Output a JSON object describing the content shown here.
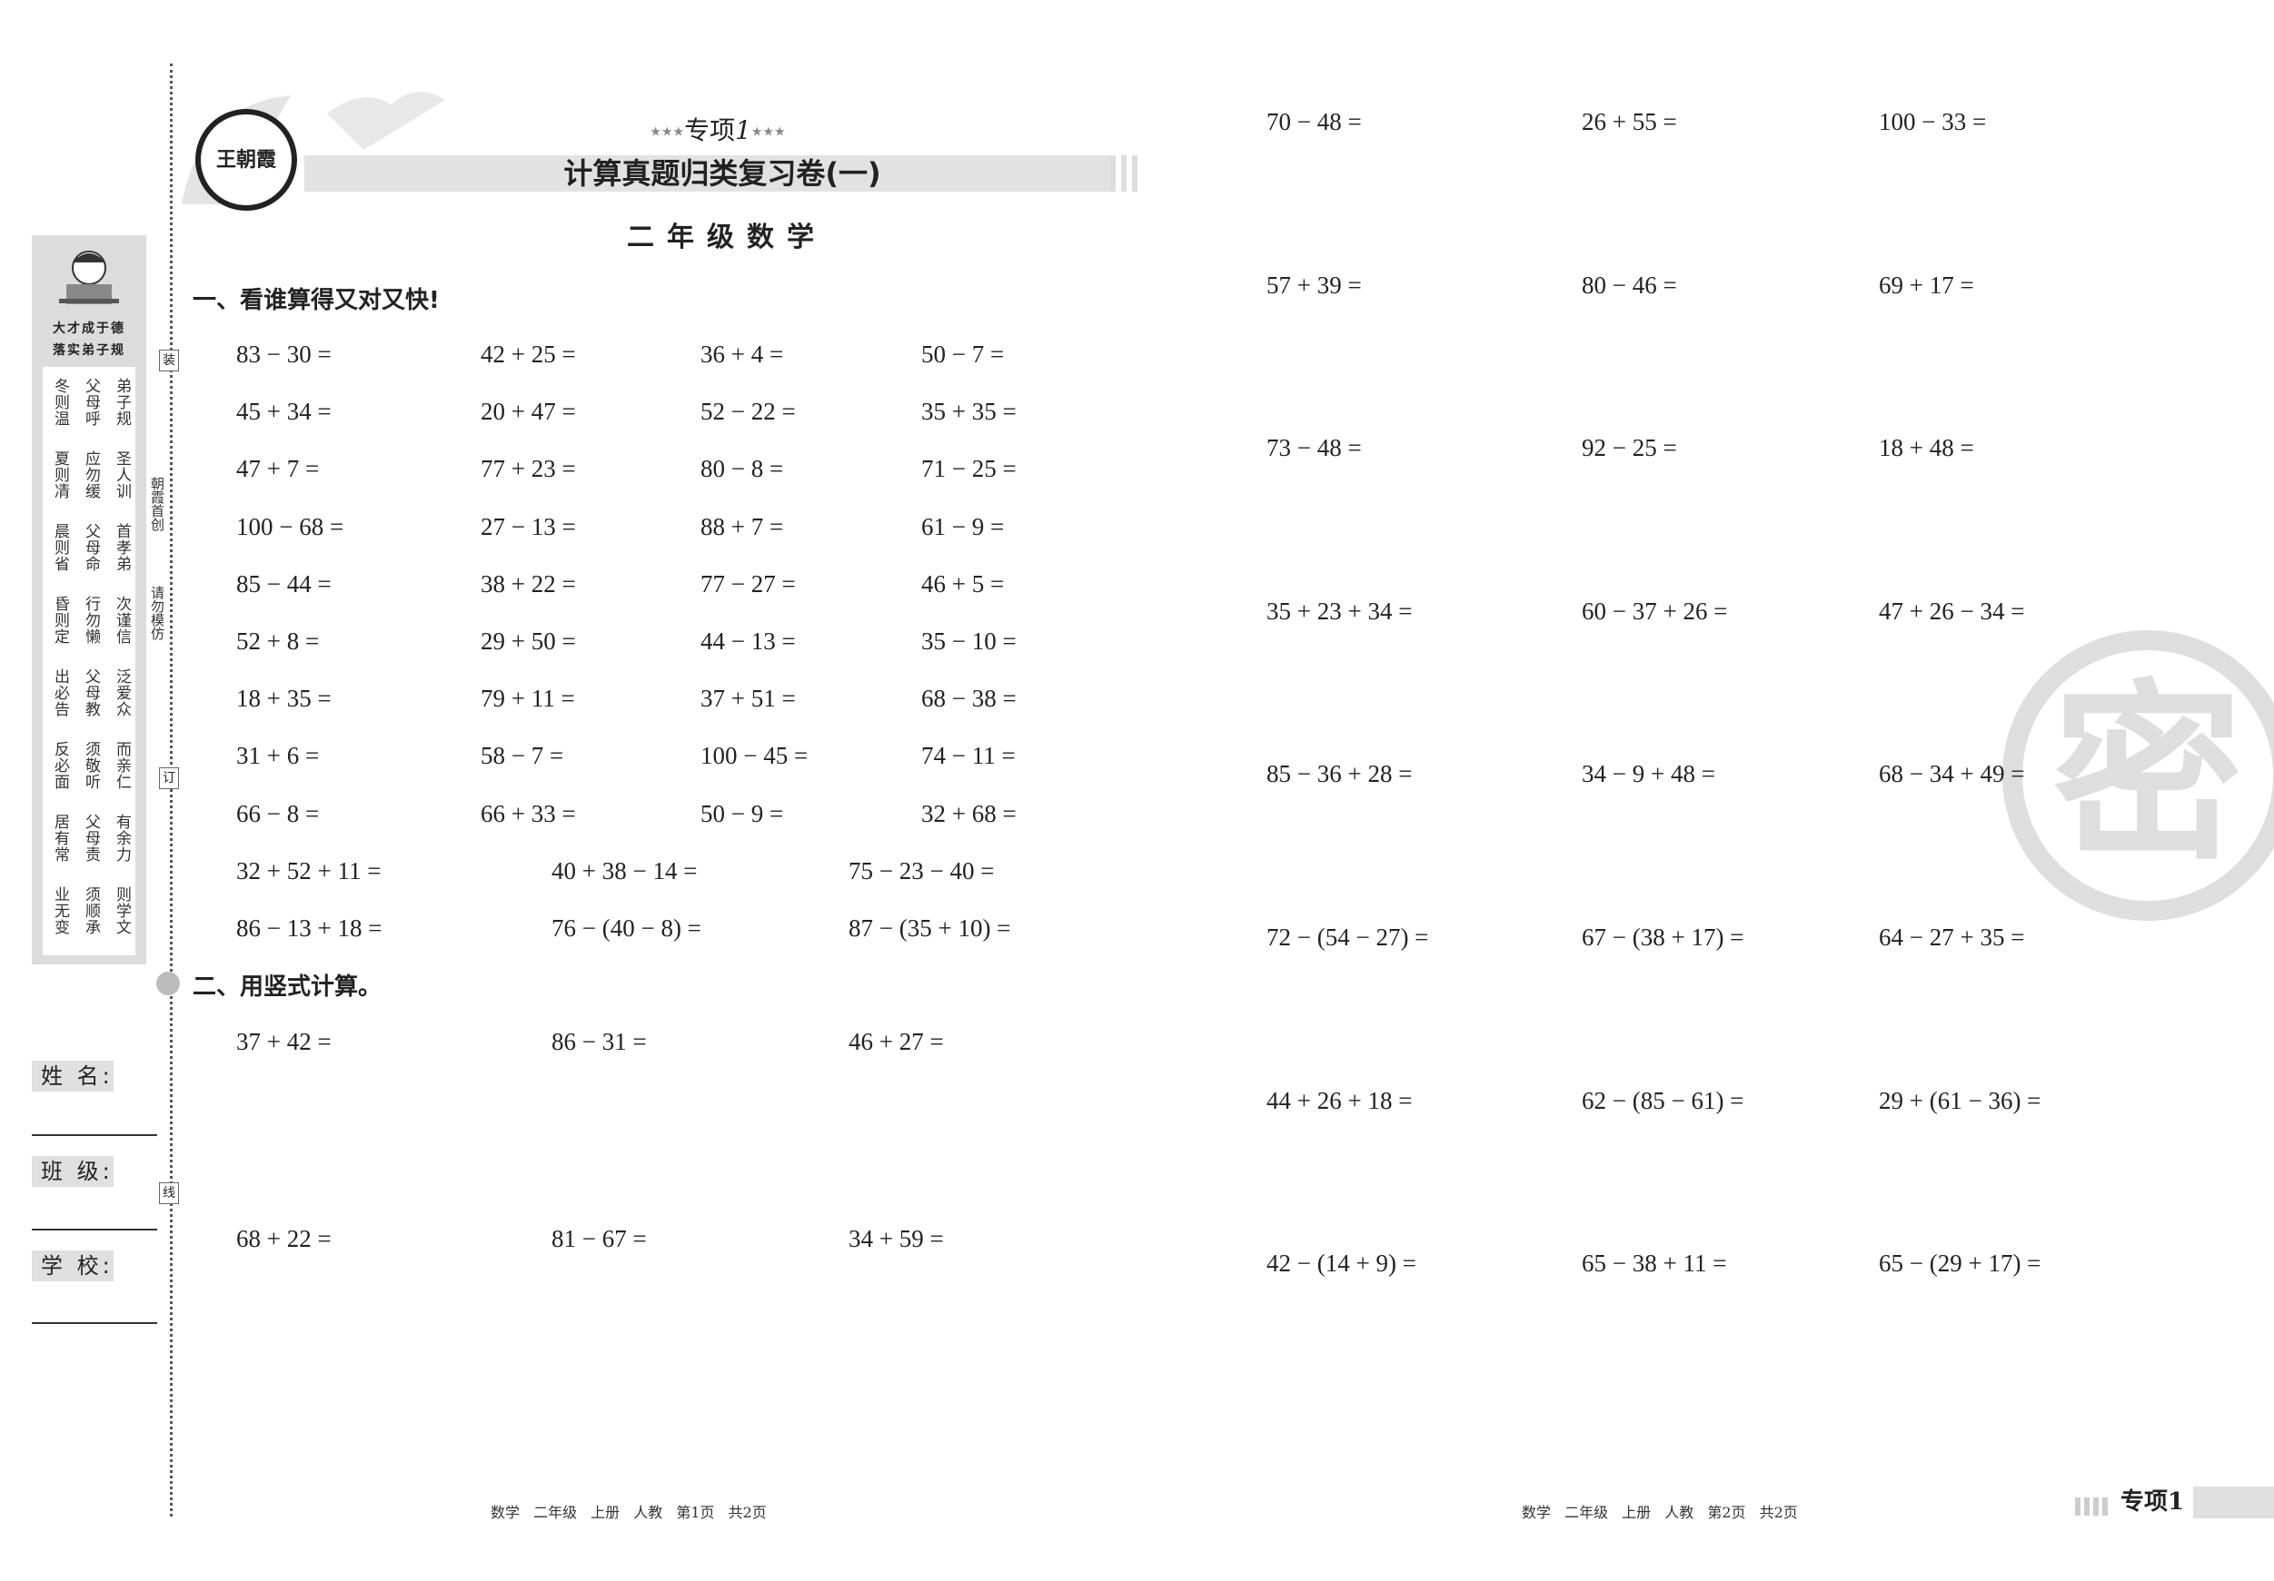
{
  "header": {
    "series_label": "专项",
    "series_number": "1",
    "title": "计算真题归类复习卷(一)",
    "subtitle": "二年级数学",
    "logo_text": "王朝霞"
  },
  "sidebar": {
    "motto_line1": "大才成于德",
    "motto_line2": "落实弟子规",
    "poem_groups": [
      [
        "冬则温",
        "父母呼",
        "弟子规"
      ],
      [
        "夏则凊",
        "应勿缓",
        "圣人训"
      ],
      [
        "晨则省",
        "父母命",
        "首孝弟"
      ],
      [
        "昏则定",
        "行勿懒",
        "次谨信"
      ],
      [
        "出必告",
        "父母教",
        "泛爱众"
      ],
      [
        "反必面",
        "须敬听",
        "而亲仁"
      ],
      [
        "居有常",
        "父母责",
        "有余力"
      ],
      [
        "业无变",
        "须顺承",
        "则学文"
      ]
    ],
    "fields": [
      {
        "label": "姓  名:"
      },
      {
        "label": "班  级:"
      },
      {
        "label": "学  校:"
      }
    ]
  },
  "spine": {
    "marks": [
      "装",
      "订",
      "线"
    ],
    "text_top": "朝霞首创",
    "text_bottom": "请勿模仿"
  },
  "section1": {
    "heading": "一、看谁算得又对又快!",
    "rows4": [
      [
        "83 − 30 =",
        "42 + 25 =",
        "36 + 4 =",
        "50 − 7 ="
      ],
      [
        "45 + 34 =",
        "20 + 47 =",
        "52 − 22 =",
        "35 + 35 ="
      ],
      [
        "47 + 7 =",
        "77 + 23 =",
        "80 − 8 =",
        "71 − 25 ="
      ],
      [
        "100 − 68 =",
        "27 − 13 =",
        "88 + 7 =",
        "61 − 9 ="
      ],
      [
        "85 − 44 =",
        "38 + 22 =",
        "77 − 27 =",
        "46 + 5 ="
      ],
      [
        "52 + 8 =",
        "29 + 50 =",
        "44 − 13 =",
        "35 − 10 ="
      ],
      [
        "18 + 35 =",
        "79 + 11 =",
        "37 + 51 =",
        "68 − 38 ="
      ],
      [
        "31 + 6 =",
        "58 − 7 =",
        "100 − 45 =",
        "74 − 11 ="
      ],
      [
        "66 − 8 =",
        "66 + 33 =",
        "50 − 9 =",
        "32 + 68 ="
      ]
    ],
    "rows3": [
      [
        "32 + 52 + 11 =",
        "40 + 38 − 14 =",
        "75 − 23 − 40 ="
      ],
      [
        "86 − 13 + 18 =",
        "76 − (40 − 8) =",
        "87 − (35 + 10) ="
      ]
    ]
  },
  "section2": {
    "heading": "二、用竖式计算。",
    "rows": [
      [
        "37 + 42 =",
        "86 − 31 =",
        "46 + 27 ="
      ],
      [
        "68 + 22 =",
        "81 − 67 =",
        "34 + 59 ="
      ]
    ]
  },
  "page2": {
    "rows": [
      [
        "70 − 48 =",
        "26 + 55 =",
        "100 − 33 ="
      ],
      [
        "57 + 39 =",
        "80 − 46 =",
        "69 + 17 ="
      ],
      [
        "73 − 48 =",
        "92 − 25 =",
        "18 + 48 ="
      ],
      [
        "35 + 23 + 34 =",
        "60 − 37 + 26 =",
        "47 + 26 − 34 ="
      ],
      [
        "85 − 36 + 28 =",
        "34 − 9 + 48 =",
        "68 − 34 + 49 ="
      ],
      [
        "72 − (54 − 27) =",
        "67 − (38 + 17) =",
        "64 − 27 + 35 ="
      ],
      [
        "44 + 26 + 18 =",
        "62 − (85 − 61) =",
        "29 + (61 − 36) ="
      ],
      [
        "42 − (14 + 9) =",
        "65 − 38 + 11 =",
        "65 − (29 + 17) ="
      ]
    ],
    "watermark": "密"
  },
  "footer": {
    "page1": "数学 二年级 上册 人教 第1页 共2页",
    "page2": "数学 二年级 上册 人教 第2页 共2页",
    "tag": "专项1"
  }
}
